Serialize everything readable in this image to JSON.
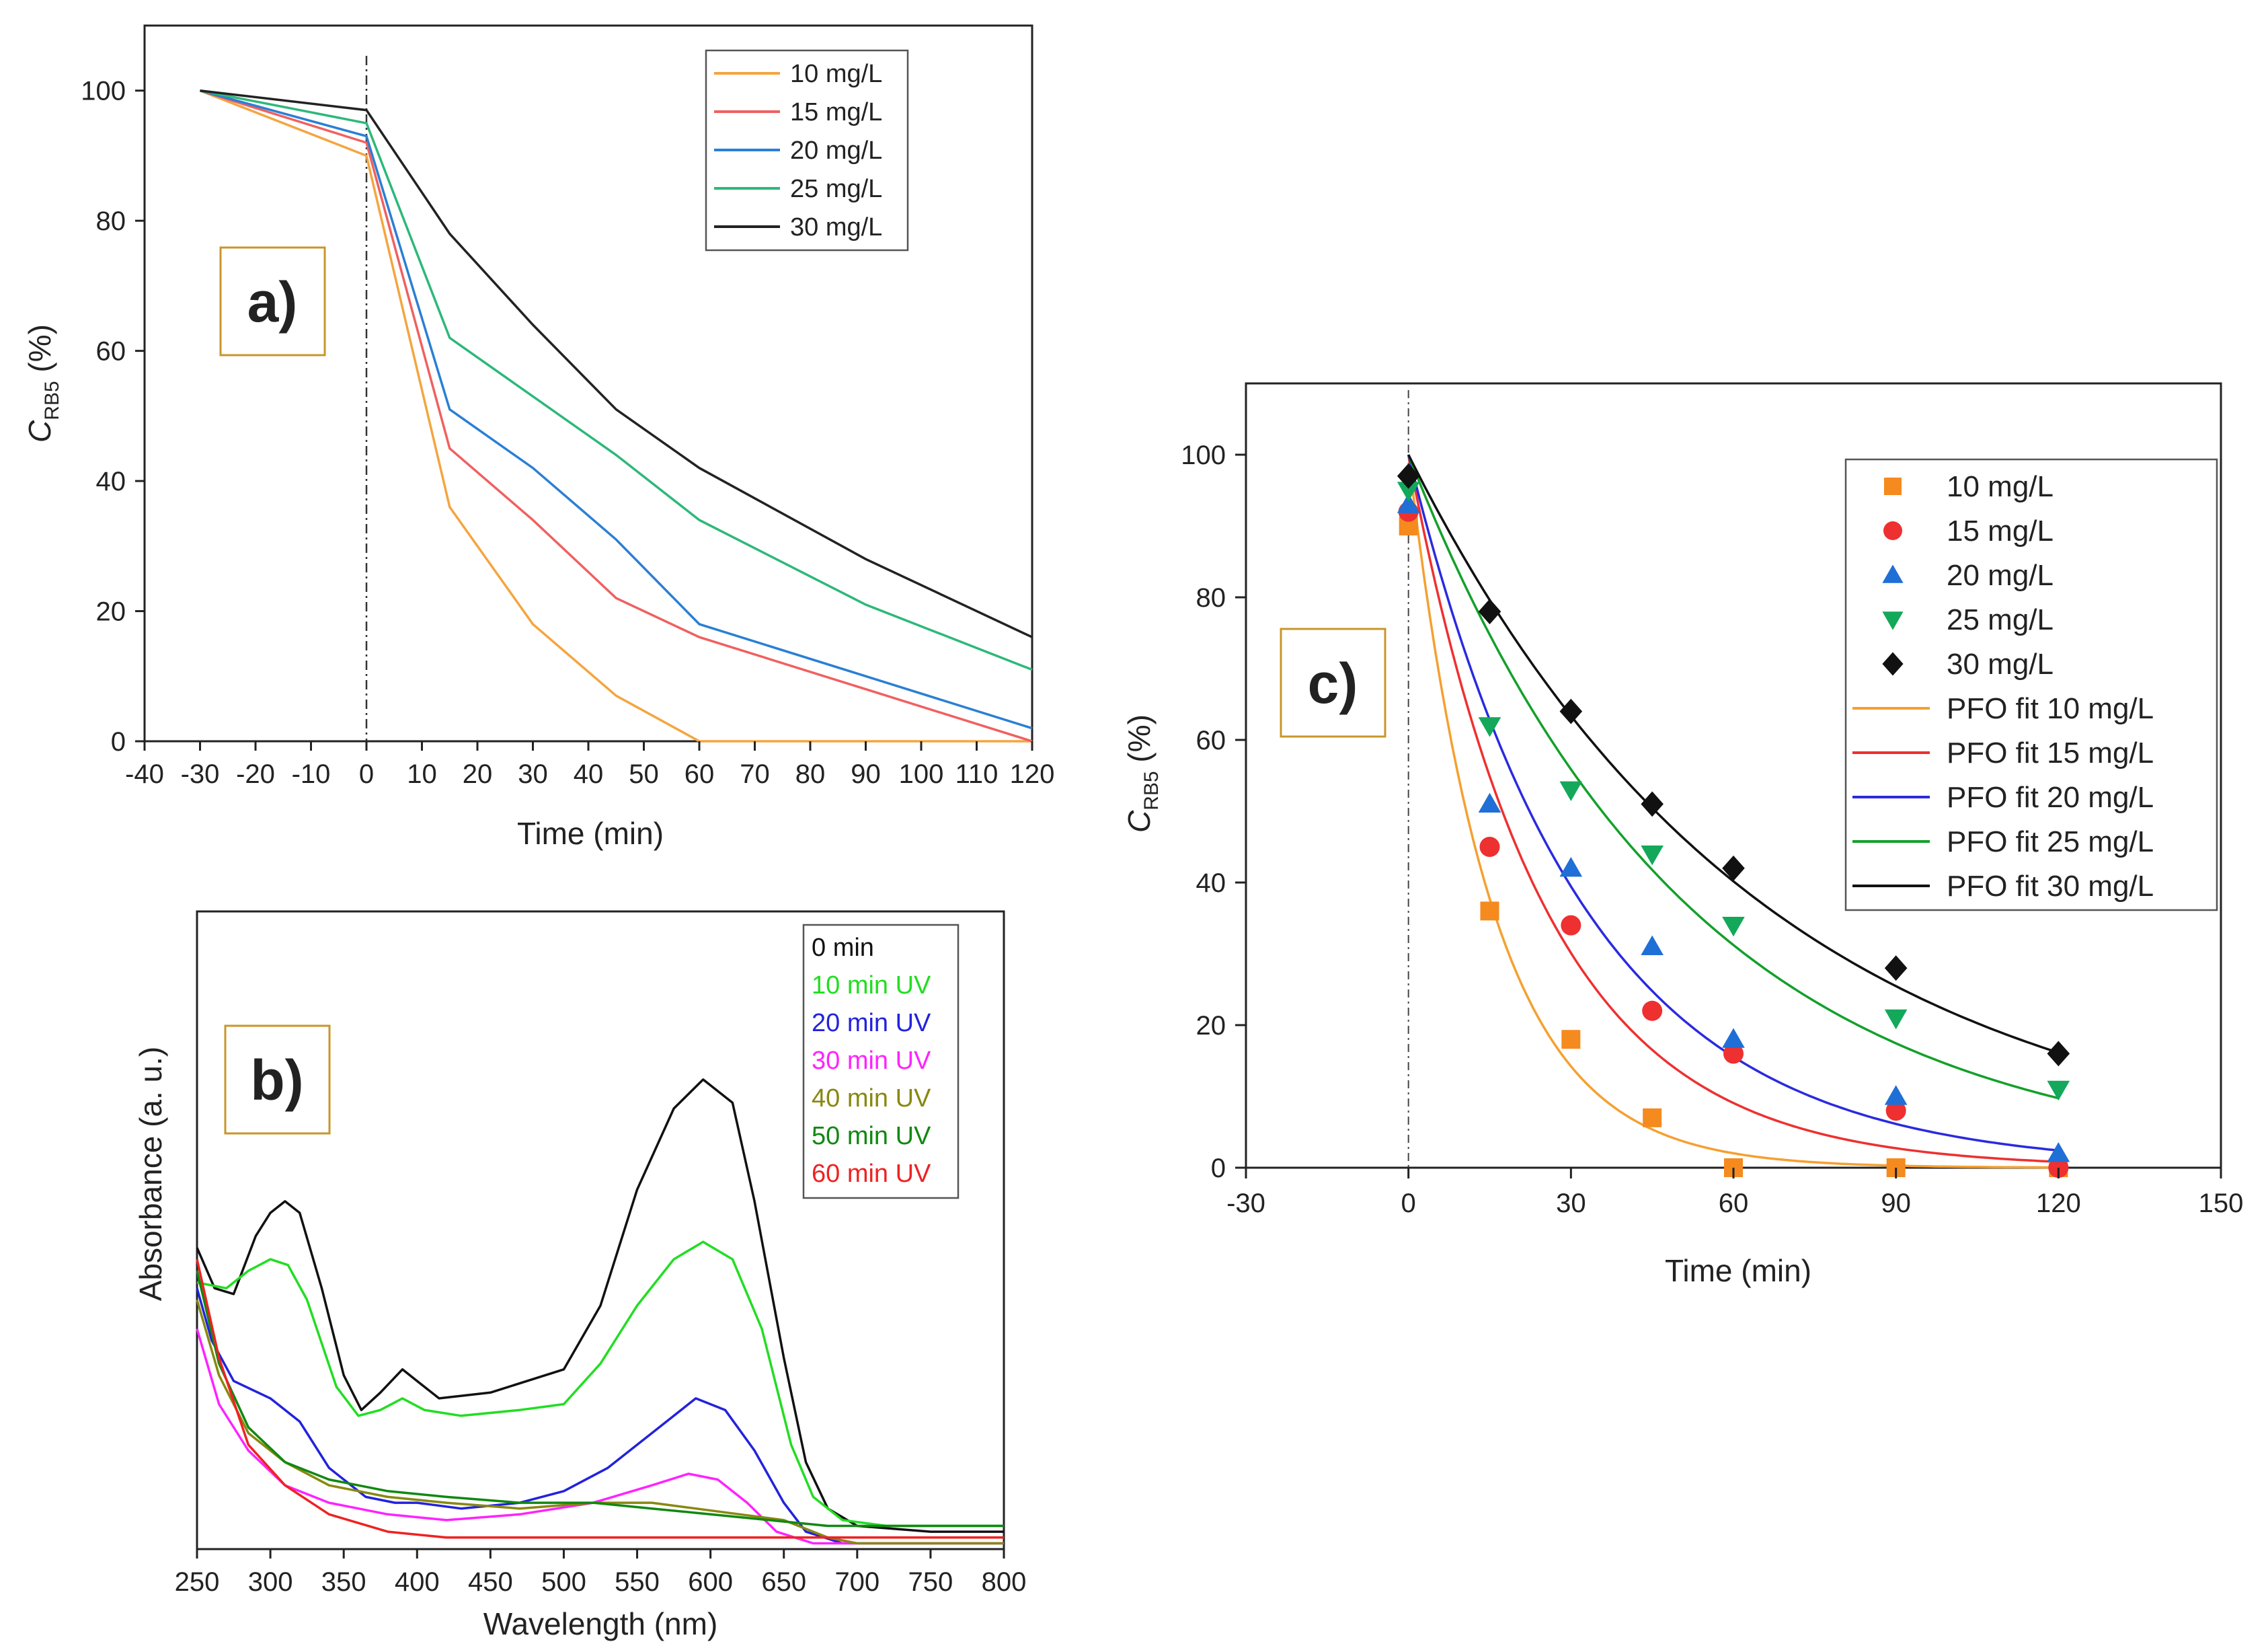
{
  "chart_data": [
    {
      "panel": "a)",
      "type": "line",
      "xlabel": "Time (min)",
      "ylabel": {
        "main": "C",
        "sub": "RB5",
        "unit": " (%)"
      },
      "xlim": [
        -40,
        120
      ],
      "ylim": [
        0,
        110
      ],
      "xticks": [
        -40,
        -30,
        -20,
        -10,
        0,
        10,
        20,
        30,
        40,
        50,
        60,
        70,
        80,
        90,
        100,
        110,
        120
      ],
      "yticks": [
        0,
        20,
        40,
        60,
        80,
        100
      ],
      "vline_x": 0,
      "series": [
        {
          "name": "10 mg/L",
          "color": "#f4a540",
          "points": [
            [
              -30,
              100
            ],
            [
              0,
              90
            ],
            [
              15,
              36
            ],
            [
              30,
              18
            ],
            [
              45,
              7
            ],
            [
              60,
              0
            ],
            [
              90,
              0
            ],
            [
              120,
              0
            ]
          ]
        },
        {
          "name": "15 mg/L",
          "color": "#f06060",
          "points": [
            [
              -30,
              100
            ],
            [
              0,
              92
            ],
            [
              15,
              45
            ],
            [
              30,
              34
            ],
            [
              45,
              22
            ],
            [
              60,
              16
            ],
            [
              90,
              8
            ],
            [
              120,
              0
            ]
          ]
        },
        {
          "name": "20 mg/L",
          "color": "#2a7fd4",
          "points": [
            [
              -30,
              100
            ],
            [
              0,
              93
            ],
            [
              15,
              51
            ],
            [
              30,
              42
            ],
            [
              45,
              31
            ],
            [
              60,
              18
            ],
            [
              90,
              10
            ],
            [
              120,
              2
            ]
          ]
        },
        {
          "name": "25 mg/L",
          "color": "#2db87a",
          "points": [
            [
              -30,
              100
            ],
            [
              0,
              95
            ],
            [
              15,
              62
            ],
            [
              30,
              53
            ],
            [
              45,
              44
            ],
            [
              60,
              34
            ],
            [
              90,
              21
            ],
            [
              120,
              11
            ]
          ]
        },
        {
          "name": "30 mg/L",
          "color": "#222222",
          "points": [
            [
              -30,
              100
            ],
            [
              0,
              97
            ],
            [
              15,
              78
            ],
            [
              30,
              64
            ],
            [
              45,
              51
            ],
            [
              60,
              42
            ],
            [
              90,
              28
            ],
            [
              120,
              16
            ]
          ]
        }
      ]
    },
    {
      "panel": "b)",
      "type": "line",
      "xlabel": "Wavelength (nm)",
      "ylabel": "Absorbance (a. u.)",
      "xlim": [
        250,
        800
      ],
      "ylim": [
        0,
        1.1
      ],
      "xticks": [
        250,
        300,
        350,
        400,
        450,
        500,
        550,
        600,
        650,
        700,
        750,
        800
      ],
      "series": [
        {
          "name": "0 min",
          "color": "#111111",
          "points": [
            [
              250,
              0.52
            ],
            [
              262,
              0.45
            ],
            [
              275,
              0.44
            ],
            [
              290,
              0.54
            ],
            [
              300,
              0.58
            ],
            [
              310,
              0.6
            ],
            [
              320,
              0.58
            ],
            [
              335,
              0.45
            ],
            [
              350,
              0.3
            ],
            [
              362,
              0.24
            ],
            [
              375,
              0.27
            ],
            [
              390,
              0.31
            ],
            [
              400,
              0.29
            ],
            [
              415,
              0.26
            ],
            [
              450,
              0.27
            ],
            [
              475,
              0.29
            ],
            [
              500,
              0.31
            ],
            [
              525,
              0.42
            ],
            [
              550,
              0.62
            ],
            [
              575,
              0.76
            ],
            [
              595,
              0.81
            ],
            [
              615,
              0.77
            ],
            [
              630,
              0.6
            ],
            [
              650,
              0.33
            ],
            [
              665,
              0.15
            ],
            [
              680,
              0.07
            ],
            [
              700,
              0.04
            ],
            [
              750,
              0.03
            ],
            [
              800,
              0.03
            ]
          ]
        },
        {
          "name": "10 min UV",
          "color": "#22dd22",
          "points": [
            [
              250,
              0.46
            ],
            [
              270,
              0.45
            ],
            [
              285,
              0.48
            ],
            [
              300,
              0.5
            ],
            [
              312,
              0.49
            ],
            [
              325,
              0.43
            ],
            [
              345,
              0.28
            ],
            [
              360,
              0.23
            ],
            [
              375,
              0.24
            ],
            [
              390,
              0.26
            ],
            [
              405,
              0.24
            ],
            [
              430,
              0.23
            ],
            [
              470,
              0.24
            ],
            [
              500,
              0.25
            ],
            [
              525,
              0.32
            ],
            [
              550,
              0.42
            ],
            [
              575,
              0.5
            ],
            [
              595,
              0.53
            ],
            [
              615,
              0.5
            ],
            [
              635,
              0.38
            ],
            [
              655,
              0.18
            ],
            [
              670,
              0.09
            ],
            [
              690,
              0.05
            ],
            [
              720,
              0.04
            ],
            [
              800,
              0.04
            ]
          ]
        },
        {
          "name": "20 min UV",
          "color": "#2222dd",
          "points": [
            [
              250,
              0.45
            ],
            [
              260,
              0.36
            ],
            [
              275,
              0.29
            ],
            [
              300,
              0.26
            ],
            [
              320,
              0.22
            ],
            [
              340,
              0.14
            ],
            [
              365,
              0.09
            ],
            [
              385,
              0.08
            ],
            [
              400,
              0.08
            ],
            [
              430,
              0.07
            ],
            [
              470,
              0.08
            ],
            [
              500,
              0.1
            ],
            [
              530,
              0.14
            ],
            [
              560,
              0.2
            ],
            [
              590,
              0.26
            ],
            [
              610,
              0.24
            ],
            [
              630,
              0.17
            ],
            [
              650,
              0.08
            ],
            [
              665,
              0.03
            ],
            [
              690,
              0.01
            ],
            [
              720,
              0.01
            ],
            [
              800,
              0.01
            ]
          ]
        },
        {
          "name": "30 min UV",
          "color": "#ff22ff",
          "points": [
            [
              250,
              0.38
            ],
            [
              265,
              0.25
            ],
            [
              285,
              0.17
            ],
            [
              310,
              0.11
            ],
            [
              340,
              0.08
            ],
            [
              380,
              0.06
            ],
            [
              420,
              0.05
            ],
            [
              470,
              0.06
            ],
            [
              520,
              0.08
            ],
            [
              560,
              0.11
            ],
            [
              585,
              0.13
            ],
            [
              605,
              0.12
            ],
            [
              625,
              0.08
            ],
            [
              645,
              0.03
            ],
            [
              670,
              0.01
            ],
            [
              800,
              0.01
            ]
          ]
        },
        {
          "name": "40 min UV",
          "color": "#888811",
          "points": [
            [
              250,
              0.43
            ],
            [
              265,
              0.3
            ],
            [
              285,
              0.2
            ],
            [
              310,
              0.15
            ],
            [
              340,
              0.11
            ],
            [
              380,
              0.09
            ],
            [
              420,
              0.08
            ],
            [
              470,
              0.07
            ],
            [
              520,
              0.08
            ],
            [
              560,
              0.08
            ],
            [
              590,
              0.07
            ],
            [
              620,
              0.06
            ],
            [
              650,
              0.05
            ],
            [
              680,
              0.02
            ],
            [
              700,
              0.01
            ],
            [
              800,
              0.01
            ]
          ]
        },
        {
          "name": "50 min UV",
          "color": "#118811",
          "points": [
            [
              250,
              0.48
            ],
            [
              265,
              0.32
            ],
            [
              285,
              0.21
            ],
            [
              310,
              0.15
            ],
            [
              340,
              0.12
            ],
            [
              380,
              0.1
            ],
            [
              420,
              0.09
            ],
            [
              470,
              0.08
            ],
            [
              520,
              0.08
            ],
            [
              560,
              0.07
            ],
            [
              600,
              0.06
            ],
            [
              640,
              0.05
            ],
            [
              680,
              0.04
            ],
            [
              720,
              0.04
            ],
            [
              800,
              0.04
            ]
          ]
        },
        {
          "name": "60 min UV",
          "color": "#ee2222",
          "points": [
            [
              250,
              0.5
            ],
            [
              265,
              0.33
            ],
            [
              285,
              0.18
            ],
            [
              310,
              0.11
            ],
            [
              340,
              0.06
            ],
            [
              380,
              0.03
            ],
            [
              420,
              0.02
            ],
            [
              470,
              0.02
            ],
            [
              520,
              0.02
            ],
            [
              580,
              0.02
            ],
            [
              640,
              0.02
            ],
            [
              700,
              0.02
            ],
            [
              750,
              0.02
            ],
            [
              800,
              0.02
            ]
          ]
        }
      ]
    },
    {
      "panel": "c)",
      "type": "scatter",
      "xlabel": "Time (min)",
      "ylabel": {
        "main": "C",
        "sub": "RB5",
        "unit": " (%)"
      },
      "xlim": [
        -30,
        150
      ],
      "ylim": [
        0,
        110
      ],
      "xticks": [
        -30,
        0,
        30,
        60,
        90,
        120,
        150
      ],
      "yticks": [
        0,
        20,
        40,
        60,
        80,
        100
      ],
      "vline_x": 0,
      "series": [
        {
          "name": "10 mg/L",
          "marker": "square",
          "color": "#f58a1f",
          "x": [
            0,
            15,
            30,
            45,
            60,
            90,
            120
          ],
          "y": [
            90,
            36,
            18,
            7,
            0,
            0,
            0
          ]
        },
        {
          "name": "15 mg/L",
          "marker": "circle",
          "color": "#ee3030",
          "x": [
            0,
            15,
            30,
            45,
            60,
            90,
            120
          ],
          "y": [
            92,
            45,
            34,
            22,
            16,
            8,
            0
          ]
        },
        {
          "name": "20 mg/L",
          "marker": "triangle-up",
          "color": "#1f6fd6",
          "x": [
            0,
            15,
            30,
            45,
            60,
            90,
            120
          ],
          "y": [
            93,
            51,
            42,
            31,
            18,
            10,
            2
          ]
        },
        {
          "name": "25 mg/L",
          "marker": "triangle-down",
          "color": "#13a85a",
          "x": [
            0,
            15,
            30,
            45,
            60,
            90,
            120
          ],
          "y": [
            95,
            62,
            53,
            44,
            34,
            21,
            11
          ]
        },
        {
          "name": "30 mg/L",
          "marker": "diamond",
          "color": "#111111",
          "x": [
            0,
            15,
            30,
            45,
            60,
            90,
            120
          ],
          "y": [
            97,
            78,
            64,
            51,
            42,
            28,
            16
          ]
        }
      ],
      "fits": [
        {
          "name": "PFO fit 10 mg/L",
          "color": "#f5a030",
          "c0": 100,
          "k": 0.065
        },
        {
          "name": "PFO fit 15 mg/L",
          "color": "#ee3030",
          "c0": 100,
          "k": 0.04
        },
        {
          "name": "PFO fit 20 mg/L",
          "color": "#2a2ae0",
          "c0": 100,
          "k": 0.031
        },
        {
          "name": "PFO fit 25 mg/L",
          "color": "#13a02a",
          "c0": 100,
          "k": 0.0194
        },
        {
          "name": "PFO fit 30 mg/L",
          "color": "#111111",
          "c0": 100,
          "k": 0.0152
        }
      ]
    }
  ]
}
